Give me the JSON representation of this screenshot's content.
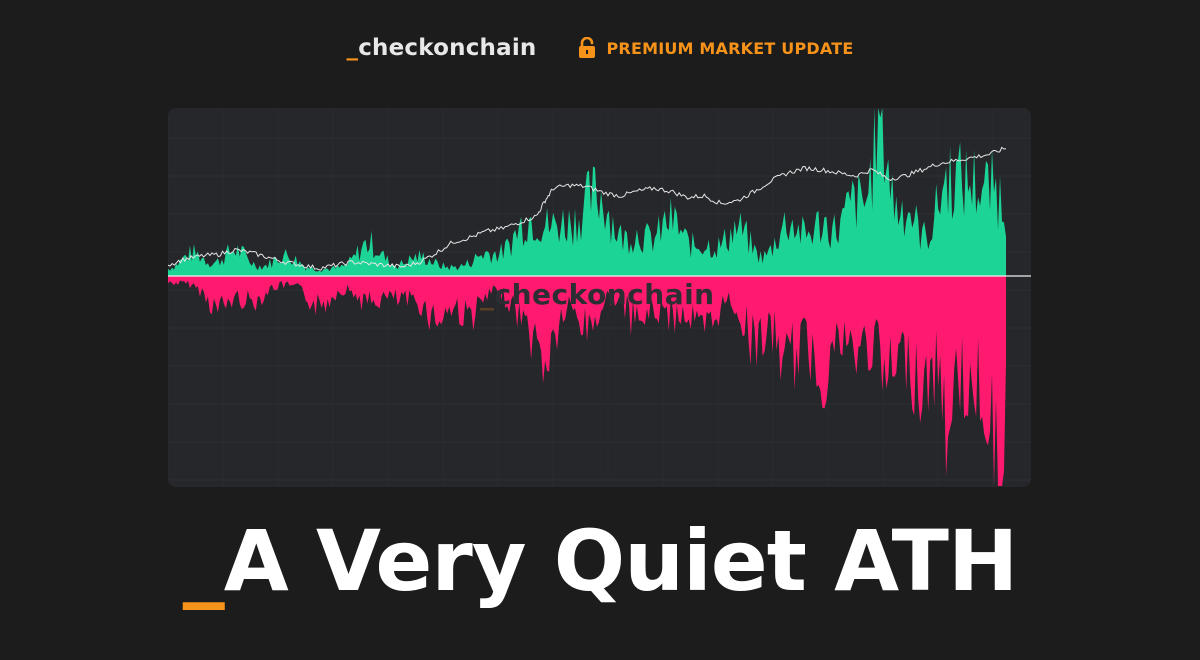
{
  "header": {
    "brand_prefix": "_",
    "brand_name": "checkonchain",
    "badge_text": "PREMIUM MARKET UPDATE"
  },
  "icons": {
    "badge": "unlocked-padlock-icon"
  },
  "colors": {
    "background": "#1c1c1c",
    "panel": "#26272b",
    "accent": "#f7931a",
    "positive": "#1bd495",
    "negative": "#ff1a70",
    "price_line": "#e6e6e6"
  },
  "chart": {
    "watermark_prefix": "_",
    "watermark_text": "checkonchain"
  },
  "title": {
    "prefix": "_",
    "text": "A Very Quiet ATH"
  },
  "chart_data": {
    "type": "area",
    "title": "",
    "xlabel": "",
    "ylabel": "",
    "grid": true,
    "legend": "none",
    "price_series_points": [
      [
        0,
        20
      ],
      [
        0.02,
        24
      ],
      [
        0.04,
        26
      ],
      [
        0.06,
        27
      ],
      [
        0.08,
        30
      ],
      [
        0.1,
        28
      ],
      [
        0.12,
        25
      ],
      [
        0.14,
        22
      ],
      [
        0.16,
        20
      ],
      [
        0.18,
        18
      ],
      [
        0.2,
        20
      ],
      [
        0.22,
        22
      ],
      [
        0.24,
        21
      ],
      [
        0.26,
        20
      ],
      [
        0.28,
        19
      ],
      [
        0.3,
        22
      ],
      [
        0.32,
        28
      ],
      [
        0.34,
        35
      ],
      [
        0.36,
        38
      ],
      [
        0.38,
        42
      ],
      [
        0.4,
        44
      ],
      [
        0.42,
        48
      ],
      [
        0.44,
        52
      ],
      [
        0.45,
        62
      ],
      [
        0.46,
        70
      ],
      [
        0.48,
        72
      ],
      [
        0.5,
        71
      ],
      [
        0.52,
        67
      ],
      [
        0.54,
        65
      ],
      [
        0.56,
        68
      ],
      [
        0.58,
        70
      ],
      [
        0.6,
        68
      ],
      [
        0.62,
        64
      ],
      [
        0.64,
        65
      ],
      [
        0.66,
        60
      ],
      [
        0.68,
        62
      ],
      [
        0.7,
        68
      ],
      [
        0.72,
        75
      ],
      [
        0.74,
        80
      ],
      [
        0.76,
        83
      ],
      [
        0.78,
        82
      ],
      [
        0.8,
        80
      ],
      [
        0.82,
        78
      ],
      [
        0.84,
        82
      ],
      [
        0.86,
        76
      ],
      [
        0.88,
        78
      ],
      [
        0.9,
        82
      ],
      [
        0.92,
        86
      ],
      [
        0.94,
        88
      ],
      [
        0.96,
        90
      ],
      [
        0.98,
        92
      ],
      [
        1.0,
        96
      ]
    ],
    "net_flow_peaks_positive": [
      [
        0.03,
        12
      ],
      [
        0.08,
        14
      ],
      [
        0.14,
        10
      ],
      [
        0.24,
        18
      ],
      [
        0.3,
        8
      ],
      [
        0.38,
        10
      ],
      [
        0.42,
        20
      ],
      [
        0.44,
        24
      ],
      [
        0.47,
        26
      ],
      [
        0.5,
        30
      ],
      [
        0.52,
        36
      ],
      [
        0.56,
        22
      ],
      [
        0.6,
        32
      ],
      [
        0.64,
        14
      ],
      [
        0.68,
        26
      ],
      [
        0.74,
        30
      ],
      [
        0.78,
        28
      ],
      [
        0.82,
        44
      ],
      [
        0.85,
        100
      ],
      [
        0.88,
        40
      ],
      [
        0.93,
        56
      ],
      [
        0.96,
        48
      ],
      [
        0.99,
        46
      ]
    ],
    "net_flow_peaks_negative": [
      [
        0.06,
        14
      ],
      [
        0.1,
        10
      ],
      [
        0.18,
        12
      ],
      [
        0.24,
        10
      ],
      [
        0.28,
        8
      ],
      [
        0.32,
        18
      ],
      [
        0.36,
        16
      ],
      [
        0.42,
        12
      ],
      [
        0.45,
        40
      ],
      [
        0.5,
        22
      ],
      [
        0.56,
        18
      ],
      [
        0.6,
        14
      ],
      [
        0.64,
        24
      ],
      [
        0.7,
        28
      ],
      [
        0.74,
        40
      ],
      [
        0.78,
        44
      ],
      [
        0.82,
        34
      ],
      [
        0.86,
        48
      ],
      [
        0.9,
        52
      ],
      [
        0.93,
        62
      ],
      [
        0.96,
        56
      ],
      [
        0.99,
        100
      ]
    ]
  }
}
